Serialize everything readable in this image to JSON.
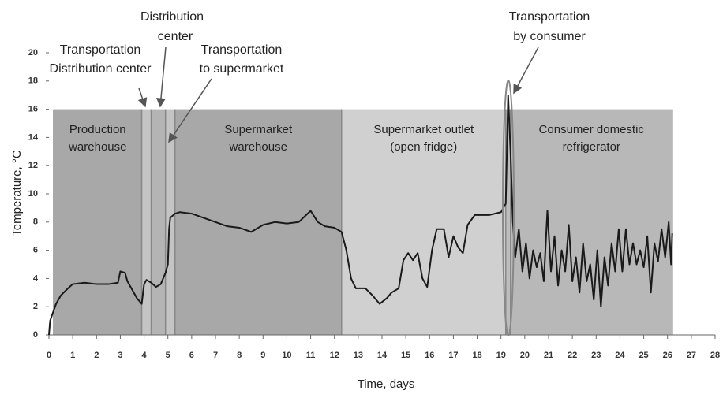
{
  "chart_data": {
    "type": "line",
    "xlabel": "Time, days",
    "ylabel": "Temperature, °C",
    "color": "#1a1a1a",
    "xlim": [
      0,
      28
    ],
    "ylim": [
      0,
      20
    ],
    "xticks": [
      0,
      1,
      2,
      3,
      4,
      5,
      6,
      7,
      8,
      9,
      10,
      11,
      12,
      13,
      14,
      15,
      16,
      17,
      18,
      19,
      20,
      21,
      22,
      23,
      24,
      25,
      26,
      27,
      28
    ],
    "yticks": [
      0,
      2,
      4,
      6,
      8,
      10,
      12,
      14,
      16,
      18,
      20
    ],
    "region_top": 16,
    "regions": [
      {
        "label": [
          "Production",
          "warehouse"
        ],
        "start": 0.2,
        "end": 3.9,
        "color": "#a8a8a8"
      },
      {
        "start": 3.9,
        "end": 4.3,
        "color": "#c4c4c4"
      },
      {
        "start": 4.3,
        "end": 4.9,
        "color": "#b4b4b4"
      },
      {
        "start": 4.9,
        "end": 5.3,
        "color": "#c4c4c4"
      },
      {
        "label": [
          "Supermarket",
          "warehouse"
        ],
        "start": 5.3,
        "end": 12.3,
        "color": "#a8a8a8"
      },
      {
        "label": [
          "Supermarket outlet",
          "(open fridge)"
        ],
        "start": 12.3,
        "end": 19.2,
        "color": "#d0d0d0"
      },
      {
        "start": 19.2,
        "end": 19.4,
        "color": "#bdbdbd"
      },
      {
        "label": [
          "Consumer domestic",
          "refrigerator"
        ],
        "start": 19.4,
        "end": 26.2,
        "color": "#b8b8b8"
      }
    ],
    "annotations": [
      {
        "text": [
          "Distribution",
          "center"
        ]
      },
      {
        "text": [
          "Transportation",
          "Distribution center"
        ]
      },
      {
        "text": [
          "Transportation",
          "to supermarket"
        ]
      },
      {
        "text": [
          "Transportation",
          "by consumer"
        ]
      }
    ],
    "x": [
      0,
      0.05,
      0.15,
      0.3,
      0.5,
      0.8,
      1.0,
      1.5,
      2.0,
      2.5,
      2.9,
      3.0,
      3.2,
      3.3,
      3.5,
      3.7,
      3.9,
      4.0,
      4.1,
      4.3,
      4.5,
      4.7,
      4.9,
      5.0,
      5.05,
      5.1,
      5.3,
      5.5,
      6.0,
      6.5,
      7.0,
      7.5,
      8.0,
      8.5,
      9.0,
      9.5,
      10.0,
      10.5,
      11.0,
      11.3,
      11.6,
      12.0,
      12.3,
      12.5,
      12.7,
      12.9,
      13.3,
      13.6,
      13.9,
      14.2,
      14.4,
      14.7,
      14.9,
      15.1,
      15.3,
      15.5,
      15.7,
      15.9,
      16.1,
      16.3,
      16.6,
      16.8,
      17.0,
      17.2,
      17.4,
      17.6,
      17.9,
      18.5,
      19.0,
      19.2,
      19.3,
      19.4,
      19.5,
      19.6,
      19.75,
      19.9,
      20.05,
      20.2,
      20.35,
      20.5,
      20.65,
      20.8,
      20.95,
      21.1,
      21.25,
      21.4,
      21.55,
      21.7,
      21.85,
      22.0,
      22.15,
      22.3,
      22.45,
      22.6,
      22.75,
      22.9,
      23.05,
      23.2,
      23.35,
      23.5,
      23.65,
      23.8,
      23.95,
      24.1,
      24.25,
      24.4,
      24.55,
      24.7,
      24.85,
      25.0,
      25.15,
      25.3,
      25.45,
      25.6,
      25.75,
      25.9,
      26.05,
      26.15,
      26.2
    ],
    "values": [
      0,
      1.0,
      1.5,
      2.2,
      2.8,
      3.3,
      3.6,
      3.7,
      3.6,
      3.6,
      3.7,
      4.5,
      4.4,
      3.8,
      3.2,
      2.6,
      2.2,
      3.6,
      3.9,
      3.7,
      3.4,
      3.6,
      4.4,
      5.0,
      7.5,
      8.3,
      8.6,
      8.7,
      8.6,
      8.3,
      8.0,
      7.7,
      7.6,
      7.3,
      7.8,
      8.0,
      7.9,
      8.0,
      8.8,
      8.0,
      7.7,
      7.6,
      7.3,
      6.0,
      4.0,
      3.3,
      3.3,
      2.8,
      2.2,
      2.6,
      3.0,
      3.3,
      5.3,
      5.8,
      5.3,
      5.8,
      4.0,
      3.4,
      6.0,
      7.5,
      7.5,
      5.5,
      7.0,
      6.2,
      5.8,
      7.8,
      8.5,
      8.5,
      8.7,
      9.3,
      17.0,
      13.0,
      8.0,
      5.5,
      7.5,
      4.5,
      6.5,
      4.0,
      6.0,
      4.8,
      5.8,
      3.8,
      8.8,
      4.5,
      7.0,
      3.5,
      6.0,
      4.5,
      7.8,
      3.8,
      5.5,
      3.0,
      6.5,
      3.8,
      5.0,
      2.5,
      6.0,
      2.0,
      5.5,
      3.5,
      6.5,
      4.5,
      7.5,
      4.5,
      7.5,
      5.0,
      6.5,
      5.0,
      6.0,
      4.8,
      7.0,
      3.0,
      6.5,
      5.2,
      7.5,
      5.5,
      8.0,
      5.0,
      7.2
    ]
  }
}
